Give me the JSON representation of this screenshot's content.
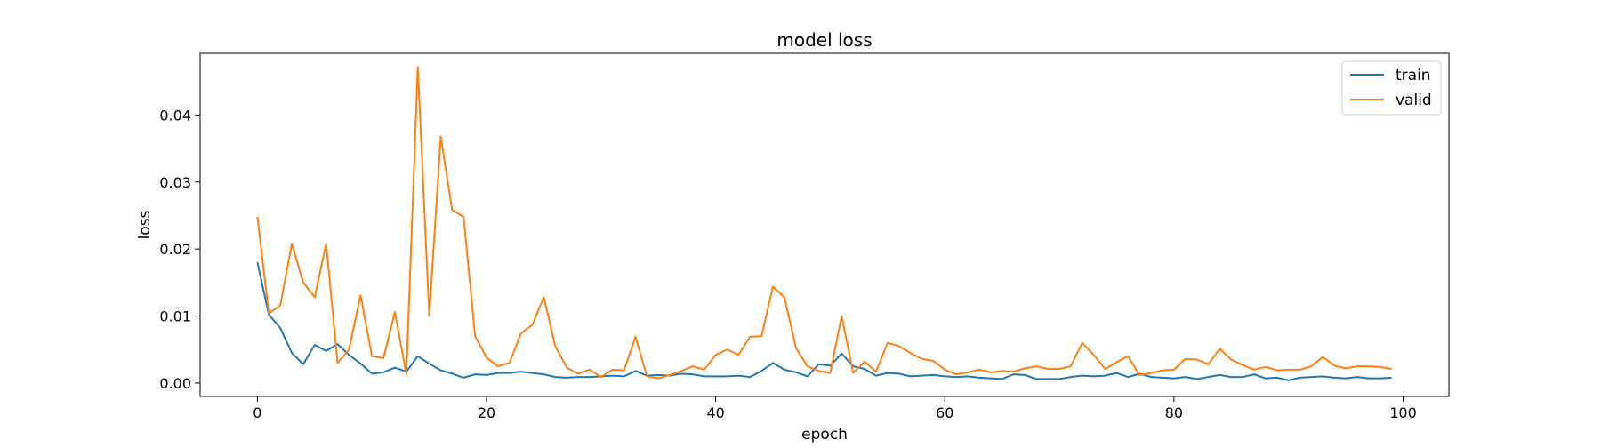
{
  "chart_data": {
    "type": "line",
    "title": "model loss",
    "xlabel": "epoch",
    "ylabel": "loss",
    "xlim": [
      -5,
      104
    ],
    "ylim": [
      -0.002,
      0.0492
    ],
    "xticks": [
      0,
      20,
      40,
      60,
      80,
      100
    ],
    "yticks": [
      0.0,
      0.01,
      0.02,
      0.03,
      0.04
    ],
    "xtick_labels": [
      "0",
      "20",
      "40",
      "60",
      "80",
      "100"
    ],
    "ytick_labels": [
      "0.00",
      "0.01",
      "0.02",
      "0.03",
      "0.04"
    ],
    "grid": false,
    "legend": "top-right",
    "series": [
      {
        "name": "train",
        "color": "#1f77b4",
        "values": [
          0.018,
          0.0102,
          0.0082,
          0.0045,
          0.0028,
          0.0057,
          0.0048,
          0.0058,
          0.0042,
          0.0029,
          0.0014,
          0.0016,
          0.0023,
          0.0017,
          0.004,
          0.0029,
          0.0019,
          0.0014,
          0.0008,
          0.0013,
          0.0012,
          0.0015,
          0.0015,
          0.0017,
          0.0015,
          0.0013,
          0.0009,
          0.0008,
          0.0009,
          0.0009,
          0.001,
          0.0011,
          0.001,
          0.0018,
          0.0011,
          0.0012,
          0.0011,
          0.0014,
          0.0013,
          0.001,
          0.001,
          0.001,
          0.0011,
          0.0009,
          0.0018,
          0.003,
          0.002,
          0.0016,
          0.001,
          0.0028,
          0.0026,
          0.0044,
          0.0025,
          0.0021,
          0.0011,
          0.0015,
          0.0014,
          0.001,
          0.0011,
          0.0012,
          0.001,
          0.0009,
          0.001,
          0.0008,
          0.0007,
          0.0006,
          0.0013,
          0.0012,
          0.0006,
          0.0006,
          0.0006,
          0.0009,
          0.0011,
          0.001,
          0.0011,
          0.0015,
          0.0009,
          0.0014,
          0.0009,
          0.0008,
          0.0007,
          0.0009,
          0.0006,
          0.0009,
          0.0012,
          0.0009,
          0.0009,
          0.0013,
          0.0007,
          0.0008,
          0.0004,
          0.0008,
          0.0009,
          0.001,
          0.0008,
          0.0007,
          0.0009,
          0.0007,
          0.0007,
          0.0008
        ]
      },
      {
        "name": "valid",
        "color": "#ff7f0e",
        "values": [
          0.0248,
          0.0104,
          0.0116,
          0.0208,
          0.015,
          0.0128,
          0.0208,
          0.003,
          0.005,
          0.0131,
          0.004,
          0.0037,
          0.0106,
          0.0013,
          0.0472,
          0.01,
          0.0368,
          0.0258,
          0.0248,
          0.007,
          0.0038,
          0.0025,
          0.003,
          0.0074,
          0.0087,
          0.0128,
          0.0055,
          0.0023,
          0.0014,
          0.002,
          0.0009,
          0.002,
          0.0019,
          0.0069,
          0.001,
          0.0007,
          0.0012,
          0.0018,
          0.0025,
          0.002,
          0.0042,
          0.005,
          0.0042,
          0.0069,
          0.007,
          0.0144,
          0.0128,
          0.0053,
          0.0025,
          0.0018,
          0.0015,
          0.01,
          0.0015,
          0.0032,
          0.0017,
          0.006,
          0.0055,
          0.0045,
          0.0036,
          0.0033,
          0.002,
          0.0013,
          0.0016,
          0.002,
          0.0016,
          0.0018,
          0.0017,
          0.0022,
          0.0025,
          0.0021,
          0.0021,
          0.0025,
          0.006,
          0.0042,
          0.0021,
          0.0031,
          0.004,
          0.0012,
          0.0015,
          0.0019,
          0.002,
          0.0036,
          0.0035,
          0.0028,
          0.0051,
          0.0035,
          0.0027,
          0.002,
          0.0024,
          0.0019,
          0.002,
          0.002,
          0.0025,
          0.0039,
          0.0026,
          0.0022,
          0.0025,
          0.0025,
          0.0024,
          0.0021
        ]
      }
    ]
  }
}
